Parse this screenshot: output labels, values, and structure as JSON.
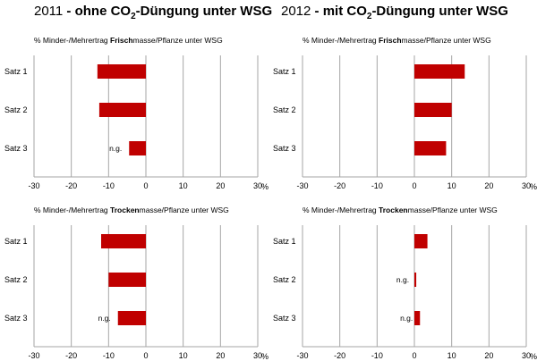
{
  "titles": [
    {
      "year": "2011",
      "pre": "  - ohne CO",
      "sub": "2",
      "post": "-Düngung unter WSG"
    },
    {
      "year": "2012",
      "pre": "  - mit CO",
      "sub": "2",
      "post": "-Düngung unter WSG"
    }
  ],
  "chart_data": [
    {
      "type": "bar",
      "subtitle": {
        "pre": "% Minder-/Mehrertrag  ",
        "bold": "Frisch",
        "post": "masse/Pflanze unter WSG"
      },
      "categories": [
        "Satz 1",
        "Satz 2",
        "Satz 3"
      ],
      "values": [
        -13,
        -12.5,
        -4.5
      ],
      "annotations": [
        "",
        "",
        "n.g."
      ],
      "xlim": [
        -30,
        30
      ],
      "xticks": [
        -30,
        -20,
        -10,
        0,
        10,
        20,
        30
      ],
      "xunit": "%",
      "grid": true,
      "bar_color": "#c00000"
    },
    {
      "type": "bar",
      "subtitle": {
        "pre": "% Minder-/Mehrertrag  ",
        "bold": "Frisch",
        "post": "masse/Pflanze unter WSG"
      },
      "categories": [
        "Satz 1",
        "Satz 2",
        "Satz 3"
      ],
      "values": [
        13.5,
        10,
        8.5
      ],
      "annotations": [
        "",
        "",
        ""
      ],
      "xlim": [
        -30,
        30
      ],
      "xticks": [
        -30,
        -20,
        -10,
        0,
        10,
        20,
        30
      ],
      "xunit": "%",
      "grid": true,
      "bar_color": "#c00000"
    },
    {
      "type": "bar",
      "subtitle": {
        "pre": "% Minder-/Mehrertrag  ",
        "bold": "Trocken",
        "post": "masse/Pflanze unter WSG"
      },
      "categories": [
        "Satz 1",
        "Satz 2",
        "Satz 3"
      ],
      "values": [
        -12,
        -10,
        -7.5
      ],
      "annotations": [
        "",
        "",
        "n.g."
      ],
      "xlim": [
        -30,
        30
      ],
      "xticks": [
        -30,
        -20,
        -10,
        0,
        10,
        20,
        30
      ],
      "xunit": "%",
      "grid": true,
      "bar_color": "#c00000"
    },
    {
      "type": "bar",
      "subtitle": {
        "pre": "% Minder-/Mehrertrag  ",
        "bold": "Trocken",
        "post": "masse/Pflanze unter WSG"
      },
      "categories": [
        "Satz 1",
        "Satz 2",
        "Satz 3"
      ],
      "values": [
        3.5,
        0.5,
        1.5
      ],
      "annotations": [
        "",
        "n.g.",
        "n.g."
      ],
      "xlim": [
        -30,
        30
      ],
      "xticks": [
        -30,
        -20,
        -10,
        0,
        10,
        20,
        30
      ],
      "xunit": "%",
      "grid": true,
      "bar_color": "#c00000"
    }
  ]
}
